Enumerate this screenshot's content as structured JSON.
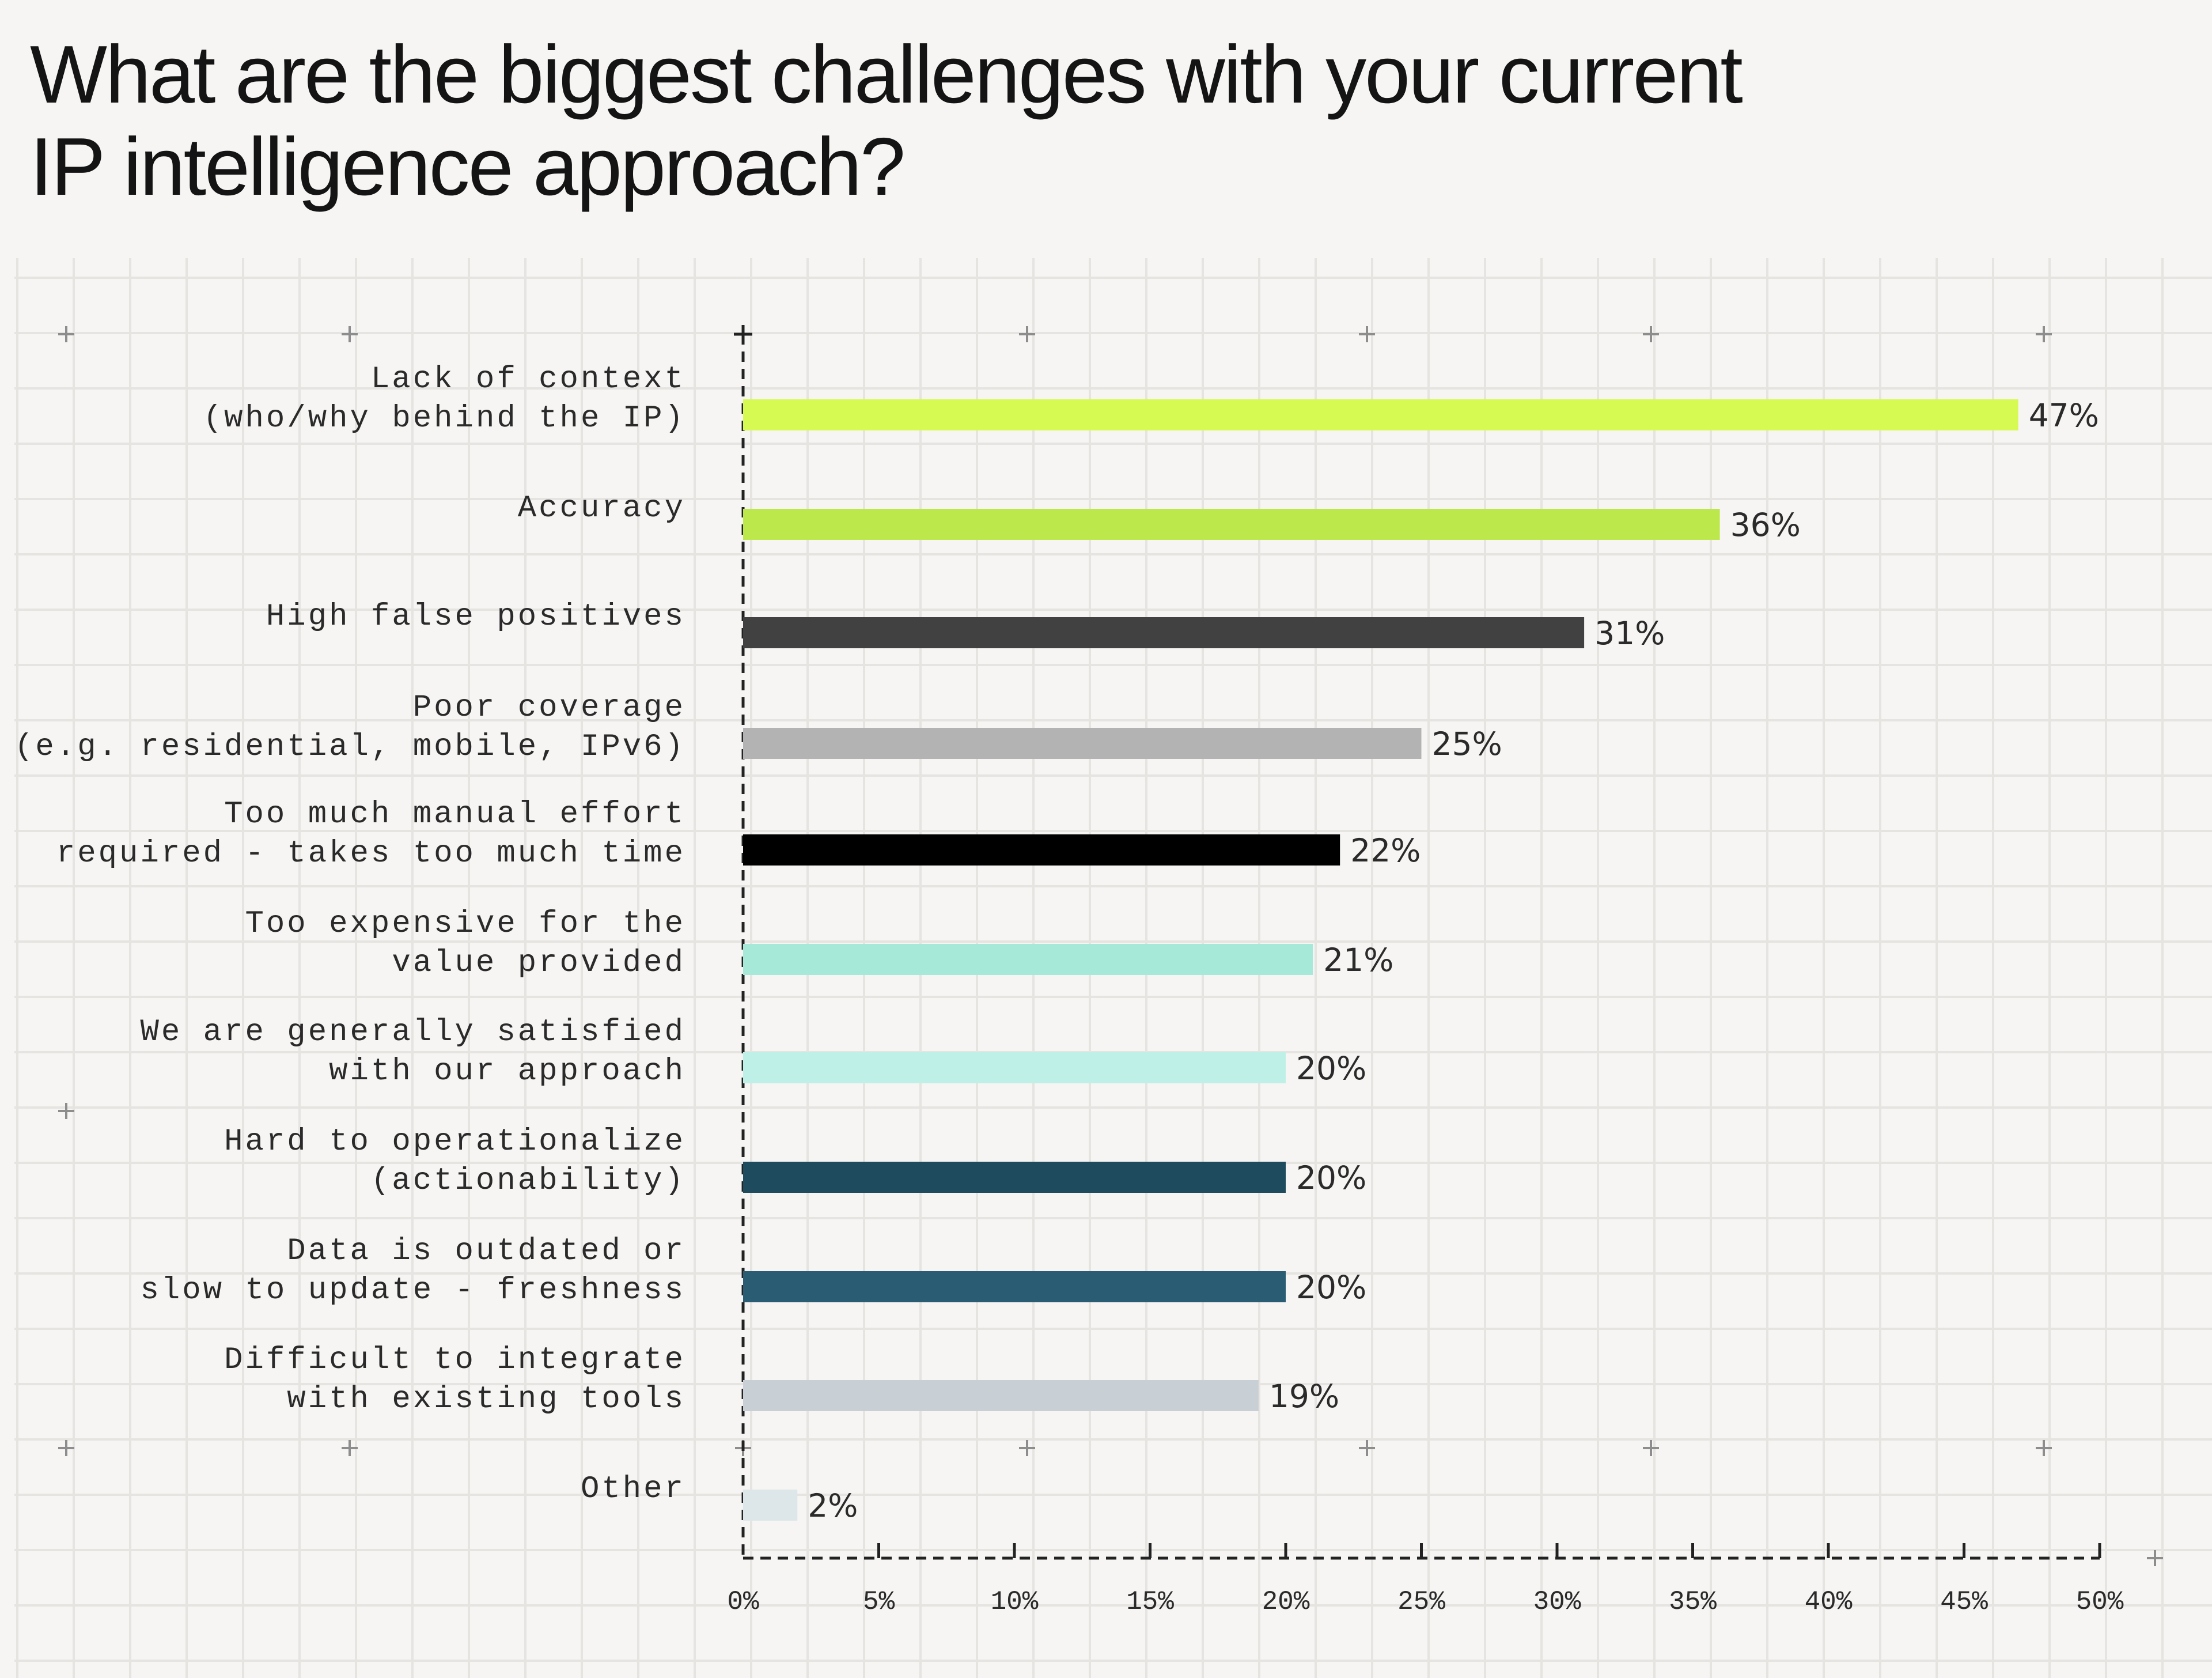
{
  "chart_data": {
    "type": "bar",
    "orientation": "horizontal",
    "title_lines": [
      "What are the biggest challenges with your current",
      "IP intelligence approach?"
    ],
    "categories": [
      [
        "Lack of context",
        "(who/why behind the IP)"
      ],
      [
        "Accuracy"
      ],
      [
        "High false positives"
      ],
      [
        "Poor coverage",
        "(e.g. residential, mobile, IPv6)"
      ],
      [
        "Too much manual effort",
        "required - takes too much time"
      ],
      [
        "Too expensive for the",
        "value provided"
      ],
      [
        "We are generally satisfied",
        "with our approach"
      ],
      [
        "Hard to operationalize",
        "(actionability)"
      ],
      [
        "Data is outdated or",
        "slow to update - freshness"
      ],
      [
        "Difficult to integrate",
        "with existing tools"
      ],
      [
        "Other"
      ]
    ],
    "values": [
      47,
      36,
      31,
      25,
      22,
      21,
      20,
      20,
      20,
      19,
      2
    ],
    "value_labels": [
      "47%",
      "36%",
      "31%",
      "25%",
      "22%",
      "21%",
      "20%",
      "20%",
      "20%",
      "19%",
      "2%"
    ],
    "colors": [
      "#d6fa52",
      "#bde84b",
      "#414141",
      "#b3b3b3",
      "#000000",
      "#a6e9d9",
      "#bff0e8",
      "#1f4b5f",
      "#2a5d74",
      "#c9d0d5",
      "#dde6e8"
    ],
    "xlim": [
      0,
      50
    ],
    "x_ticks": [
      0,
      5,
      10,
      15,
      20,
      25,
      30,
      35,
      40,
      45,
      50
    ],
    "x_tick_labels": [
      "0%",
      "5%",
      "10%",
      "15%",
      "20%",
      "25%",
      "30%",
      "35%",
      "40%",
      "45%",
      "50%"
    ],
    "grid": true,
    "xlabel": "",
    "ylabel": ""
  }
}
